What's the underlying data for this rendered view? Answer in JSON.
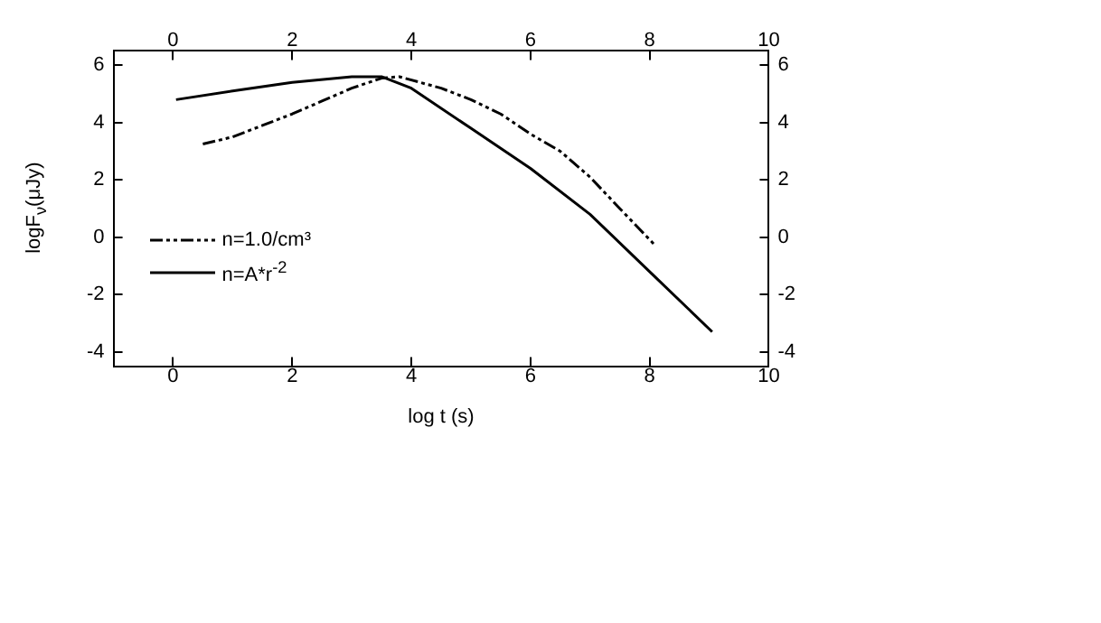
{
  "chart_data": {
    "type": "line",
    "xlabel": "log t (s)",
    "ylabel": "logF$_{ν}$(μJy)",
    "xlim": [
      -1,
      10
    ],
    "xticks": [
      0,
      2,
      4,
      6,
      8,
      10
    ],
    "x2lim": [
      -1,
      10
    ],
    "x2ticks": [
      0,
      2,
      4,
      6,
      8,
      10
    ],
    "ylim": [
      -4.5,
      6.5
    ],
    "yticks": [
      -4,
      -2,
      0,
      2,
      4,
      6
    ],
    "y2lim": [
      -4.5,
      6.5
    ],
    "y2ticks": [
      -4,
      -2,
      0,
      2,
      4,
      6
    ],
    "grid": false,
    "legend": "left",
    "marker": "none",
    "series": [
      {
        "name": "n=1.0/cm³",
        "color": "#000000",
        "line_style": "dashed",
        "x": [
          0.5,
          1,
          1.5,
          2,
          2.5,
          3,
          3.5,
          3.8,
          4.5,
          5,
          5.5,
          6,
          6.5,
          7,
          7.5,
          8.1
        ],
        "values": [
          3.25,
          3.5,
          3.9,
          4.3,
          4.75,
          5.2,
          5.55,
          5.6,
          5.2,
          4.8,
          4.3,
          3.6,
          3.0,
          2.1,
          1.0,
          -0.3
        ]
      },
      {
        "name": "n=A*r$^{-2}$",
        "color": "#000000",
        "line_style": "solid",
        "x": [
          0.05,
          1,
          2,
          3,
          3.5,
          4,
          5,
          6,
          7,
          8,
          9.05
        ],
        "values": [
          4.8,
          5.1,
          5.4,
          5.6,
          5.6,
          5.2,
          3.8,
          2.4,
          0.8,
          -1.2,
          -3.3
        ]
      }
    ]
  }
}
